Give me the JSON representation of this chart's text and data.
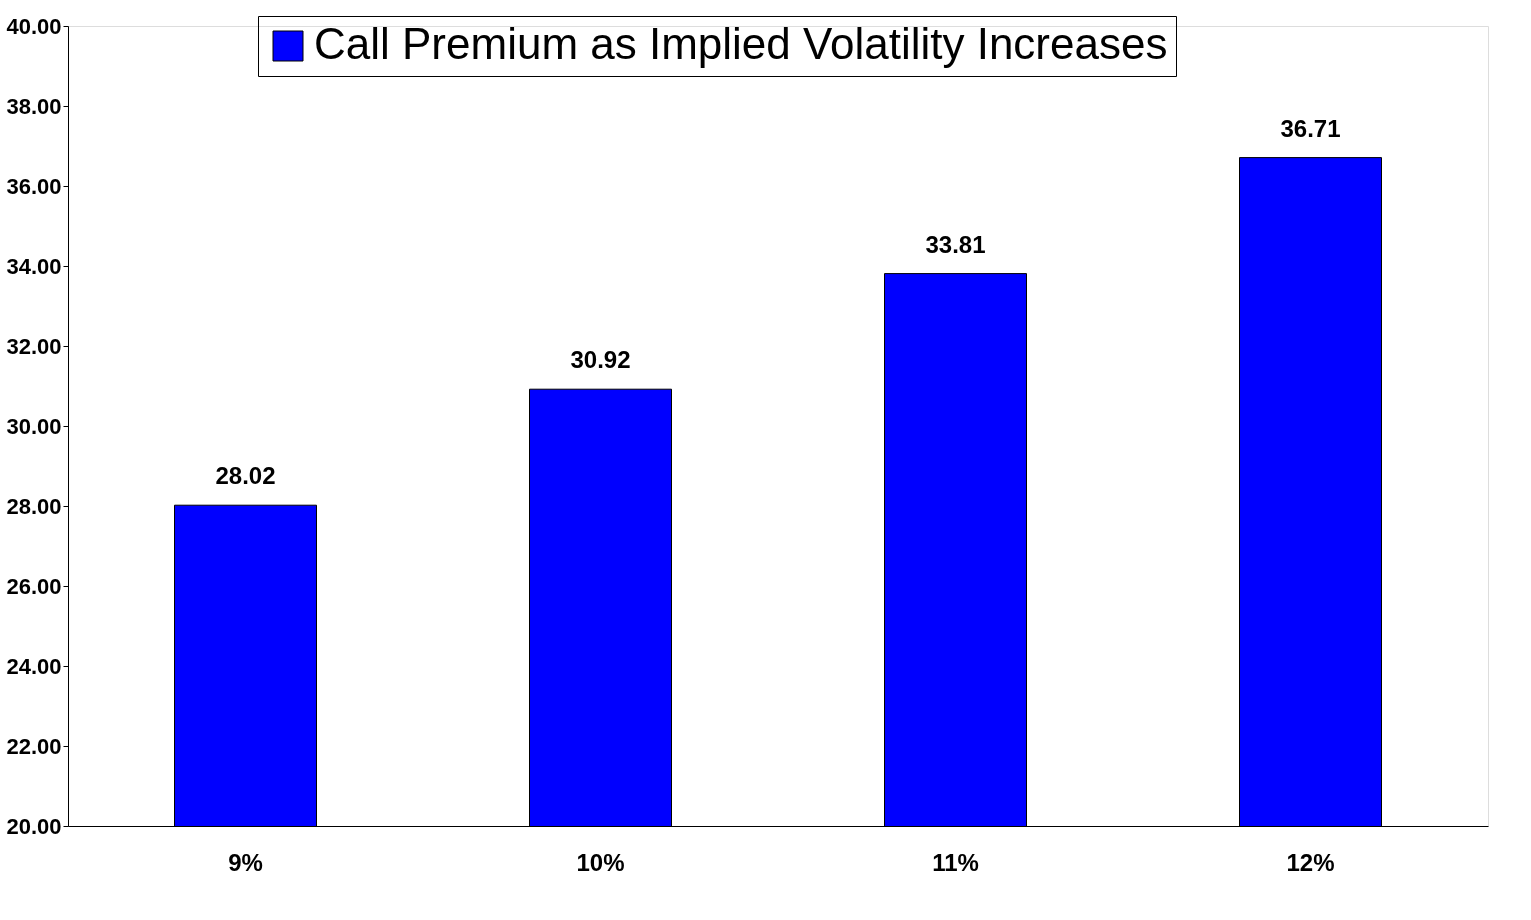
{
  "chart_data": {
    "type": "bar",
    "categories": [
      "9%",
      "10%",
      "11%",
      "12%"
    ],
    "series": [
      {
        "name": "Call Premium as Implied Volatility Increases",
        "color": "#0000ff",
        "values": [
          28.02,
          30.92,
          33.81,
          36.71
        ]
      }
    ],
    "ylim": [
      20,
      40
    ],
    "yticks": [
      {
        "value": 20,
        "label": "20.00"
      },
      {
        "value": 22,
        "label": "22.00"
      },
      {
        "value": 24,
        "label": "24.00"
      },
      {
        "value": 26,
        "label": "26.00"
      },
      {
        "value": 28,
        "label": "28.00"
      },
      {
        "value": 30,
        "label": "30.00"
      },
      {
        "value": 32,
        "label": "32.00"
      },
      {
        "value": 34,
        "label": "34.00"
      },
      {
        "value": 36,
        "label": "36.00"
      },
      {
        "value": 38,
        "label": "38.00"
      },
      {
        "value": 40,
        "label": "40.00"
      }
    ],
    "data_labels": true,
    "legend": "top"
  }
}
